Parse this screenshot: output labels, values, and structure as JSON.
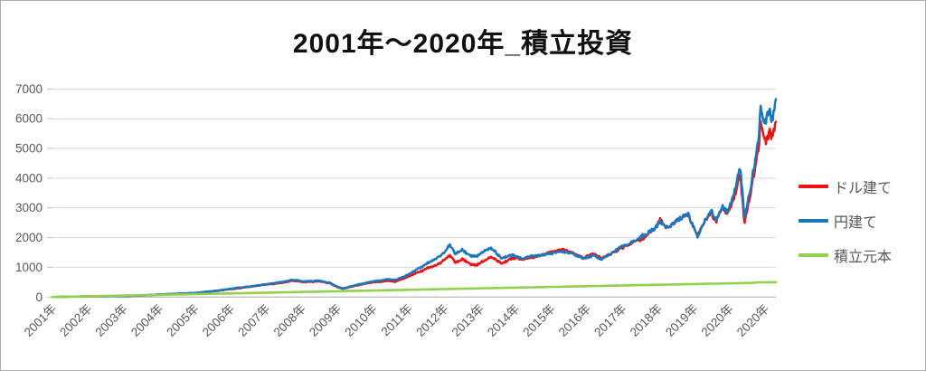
{
  "chart_data": {
    "type": "line",
    "title": "2001年～2020年_積立投資",
    "legend_position": "right",
    "grid": true,
    "text_color": "#595959",
    "gridline_color": "#d9d9d9",
    "axis_line_color": "#bfbfbf",
    "y_axis": {
      "ticks": [
        "0",
        "1000",
        "2000",
        "3000",
        "4000",
        "5000",
        "6000",
        "7000"
      ],
      "tick_values": [
        0,
        1000,
        2000,
        3000,
        4000,
        5000,
        6000,
        7000
      ],
      "range": [
        0,
        7000
      ]
    },
    "x_axis": {
      "labels": [
        "2001年",
        "2002年",
        "2003年",
        "2004年",
        "2005年",
        "2006年",
        "2007年",
        "2008年",
        "2009年",
        "2010年",
        "2011年",
        "2012年",
        "2013年",
        "2014年",
        "2015年",
        "2016年",
        "2017年",
        "2018年",
        "2019年",
        "2020年",
        "2020年"
      ],
      "start_year": 2001,
      "span_years": 20.3
    },
    "series": [
      {
        "name": "ドル建て",
        "color": "#ee1111",
        "points": [
          [
            2001.0,
            2
          ],
          [
            2001.5,
            13
          ],
          [
            2002.0,
            24
          ],
          [
            2002.5,
            28
          ],
          [
            2002.9,
            32
          ],
          [
            2003.2,
            40
          ],
          [
            2003.6,
            56
          ],
          [
            2004.0,
            85
          ],
          [
            2004.5,
            110
          ],
          [
            2005.0,
            135
          ],
          [
            2005.6,
            205
          ],
          [
            2006.0,
            268
          ],
          [
            2006.5,
            345
          ],
          [
            2007.0,
            415
          ],
          [
            2007.4,
            480
          ],
          [
            2007.75,
            555
          ],
          [
            2008.1,
            510
          ],
          [
            2008.5,
            540
          ],
          [
            2008.8,
            460
          ],
          [
            2009.0,
            330
          ],
          [
            2009.15,
            278
          ],
          [
            2009.5,
            380
          ],
          [
            2009.8,
            455
          ],
          [
            2010.1,
            505
          ],
          [
            2010.4,
            560
          ],
          [
            2010.6,
            515
          ],
          [
            2010.9,
            640
          ],
          [
            2011.2,
            800
          ],
          [
            2011.5,
            960
          ],
          [
            2011.8,
            1100
          ],
          [
            2012.0,
            1260
          ],
          [
            2012.15,
            1420
          ],
          [
            2012.3,
            1160
          ],
          [
            2012.5,
            1280
          ],
          [
            2012.7,
            1120
          ],
          [
            2012.9,
            1060
          ],
          [
            2013.1,
            1220
          ],
          [
            2013.3,
            1370
          ],
          [
            2013.6,
            1120
          ],
          [
            2013.9,
            1280
          ],
          [
            2014.2,
            1270
          ],
          [
            2014.6,
            1400
          ],
          [
            2015.0,
            1520
          ],
          [
            2015.3,
            1570
          ],
          [
            2015.6,
            1500
          ],
          [
            2015.9,
            1330
          ],
          [
            2016.2,
            1460
          ],
          [
            2016.4,
            1290
          ],
          [
            2016.7,
            1460
          ],
          [
            2017.0,
            1680
          ],
          [
            2017.3,
            1820
          ],
          [
            2017.6,
            2010
          ],
          [
            2017.9,
            2290
          ],
          [
            2018.05,
            2560
          ],
          [
            2018.25,
            2300
          ],
          [
            2018.55,
            2560
          ],
          [
            2018.85,
            2760
          ],
          [
            2019.1,
            2060
          ],
          [
            2019.35,
            2650
          ],
          [
            2019.5,
            2840
          ],
          [
            2019.62,
            2500
          ],
          [
            2019.8,
            2980
          ],
          [
            2019.95,
            2800
          ],
          [
            2020.16,
            3480
          ],
          [
            2020.29,
            4200
          ],
          [
            2020.42,
            2470
          ],
          [
            2020.62,
            3700
          ],
          [
            2020.75,
            4550
          ],
          [
            2020.82,
            5000
          ],
          [
            2020.87,
            5750
          ],
          [
            2020.95,
            5300
          ],
          [
            2021.05,
            5200
          ],
          [
            2021.12,
            5550
          ],
          [
            2021.18,
            5320
          ],
          [
            2021.3,
            5780
          ]
        ]
      },
      {
        "name": "円建て",
        "color": "#1878be",
        "points": [
          [
            2001.0,
            2
          ],
          [
            2001.5,
            14
          ],
          [
            2002.0,
            26
          ],
          [
            2002.5,
            30
          ],
          [
            2002.9,
            34
          ],
          [
            2003.2,
            42
          ],
          [
            2003.6,
            60
          ],
          [
            2004.0,
            90
          ],
          [
            2004.5,
            115
          ],
          [
            2005.0,
            140
          ],
          [
            2005.6,
            215
          ],
          [
            2006.0,
            280
          ],
          [
            2006.5,
            360
          ],
          [
            2007.0,
            430
          ],
          [
            2007.4,
            500
          ],
          [
            2007.75,
            580
          ],
          [
            2008.1,
            530
          ],
          [
            2008.5,
            560
          ],
          [
            2008.8,
            480
          ],
          [
            2009.0,
            350
          ],
          [
            2009.15,
            290
          ],
          [
            2009.5,
            400
          ],
          [
            2009.8,
            480
          ],
          [
            2010.1,
            540
          ],
          [
            2010.4,
            610
          ],
          [
            2010.6,
            560
          ],
          [
            2010.9,
            700
          ],
          [
            2011.2,
            900
          ],
          [
            2011.5,
            1120
          ],
          [
            2011.8,
            1320
          ],
          [
            2012.0,
            1520
          ],
          [
            2012.15,
            1750
          ],
          [
            2012.3,
            1450
          ],
          [
            2012.5,
            1620
          ],
          [
            2012.7,
            1420
          ],
          [
            2012.9,
            1360
          ],
          [
            2013.1,
            1520
          ],
          [
            2013.3,
            1660
          ],
          [
            2013.6,
            1310
          ],
          [
            2013.9,
            1430
          ],
          [
            2014.2,
            1320
          ],
          [
            2014.6,
            1400
          ],
          [
            2015.0,
            1430
          ],
          [
            2015.3,
            1510
          ],
          [
            2015.6,
            1470
          ],
          [
            2015.9,
            1300
          ],
          [
            2016.2,
            1420
          ],
          [
            2016.4,
            1260
          ],
          [
            2016.7,
            1460
          ],
          [
            2017.0,
            1700
          ],
          [
            2017.3,
            1860
          ],
          [
            2017.6,
            2060
          ],
          [
            2017.9,
            2320
          ],
          [
            2018.05,
            2600
          ],
          [
            2018.25,
            2340
          ],
          [
            2018.55,
            2600
          ],
          [
            2018.85,
            2820
          ],
          [
            2019.1,
            2020
          ],
          [
            2019.35,
            2700
          ],
          [
            2019.5,
            2900
          ],
          [
            2019.62,
            2560
          ],
          [
            2019.8,
            3050
          ],
          [
            2019.95,
            2870
          ],
          [
            2020.16,
            3650
          ],
          [
            2020.29,
            4450
          ],
          [
            2020.42,
            2660
          ],
          [
            2020.62,
            3900
          ],
          [
            2020.75,
            4800
          ],
          [
            2020.82,
            5400
          ],
          [
            2020.87,
            6350
          ],
          [
            2020.95,
            5800
          ],
          [
            2021.05,
            6050
          ],
          [
            2021.12,
            6250
          ],
          [
            2021.18,
            5950
          ],
          [
            2021.3,
            6600
          ]
        ]
      },
      {
        "name": "積立元本",
        "color": "#92d050",
        "points": [
          [
            2001.0,
            2
          ],
          [
            2005.0,
            99
          ],
          [
            2009.0,
            196
          ],
          [
            2013.0,
            293
          ],
          [
            2017.0,
            390
          ],
          [
            2020.7,
            478
          ],
          [
            2020.8,
            495
          ],
          [
            2021.3,
            500
          ]
        ]
      }
    ]
  }
}
